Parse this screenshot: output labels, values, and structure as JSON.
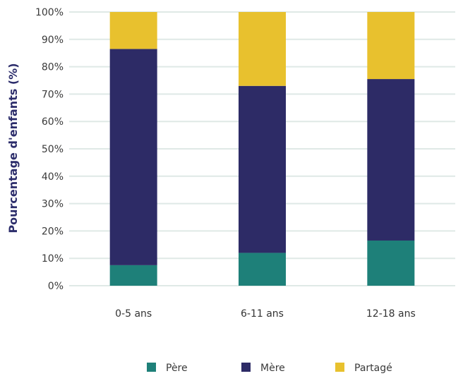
{
  "chart_data": {
    "type": "bar",
    "stacked": true,
    "categories": [
      "0-5 ans",
      "6-11 ans",
      "12-18 ans"
    ],
    "series": [
      {
        "name": "Père",
        "values": [
          7.5,
          12,
          16.5
        ],
        "color": "#1e8079"
      },
      {
        "name": "Mère",
        "values": [
          79,
          61,
          59
        ],
        "color": "#2d2b66"
      },
      {
        "name": "Partagé",
        "values": [
          13.5,
          27,
          24.5
        ],
        "color": "#e8c12e"
      }
    ],
    "ylabel": "Pourcentage d'enfants (%)",
    "ylim": [
      0,
      100
    ],
    "y_ticks": [
      "0%",
      "10%",
      "20%",
      "30%",
      "40%",
      "50%",
      "60%",
      "70%",
      "80%",
      "90%",
      "100%"
    ],
    "grid": true,
    "legend_position": "bottom"
  }
}
